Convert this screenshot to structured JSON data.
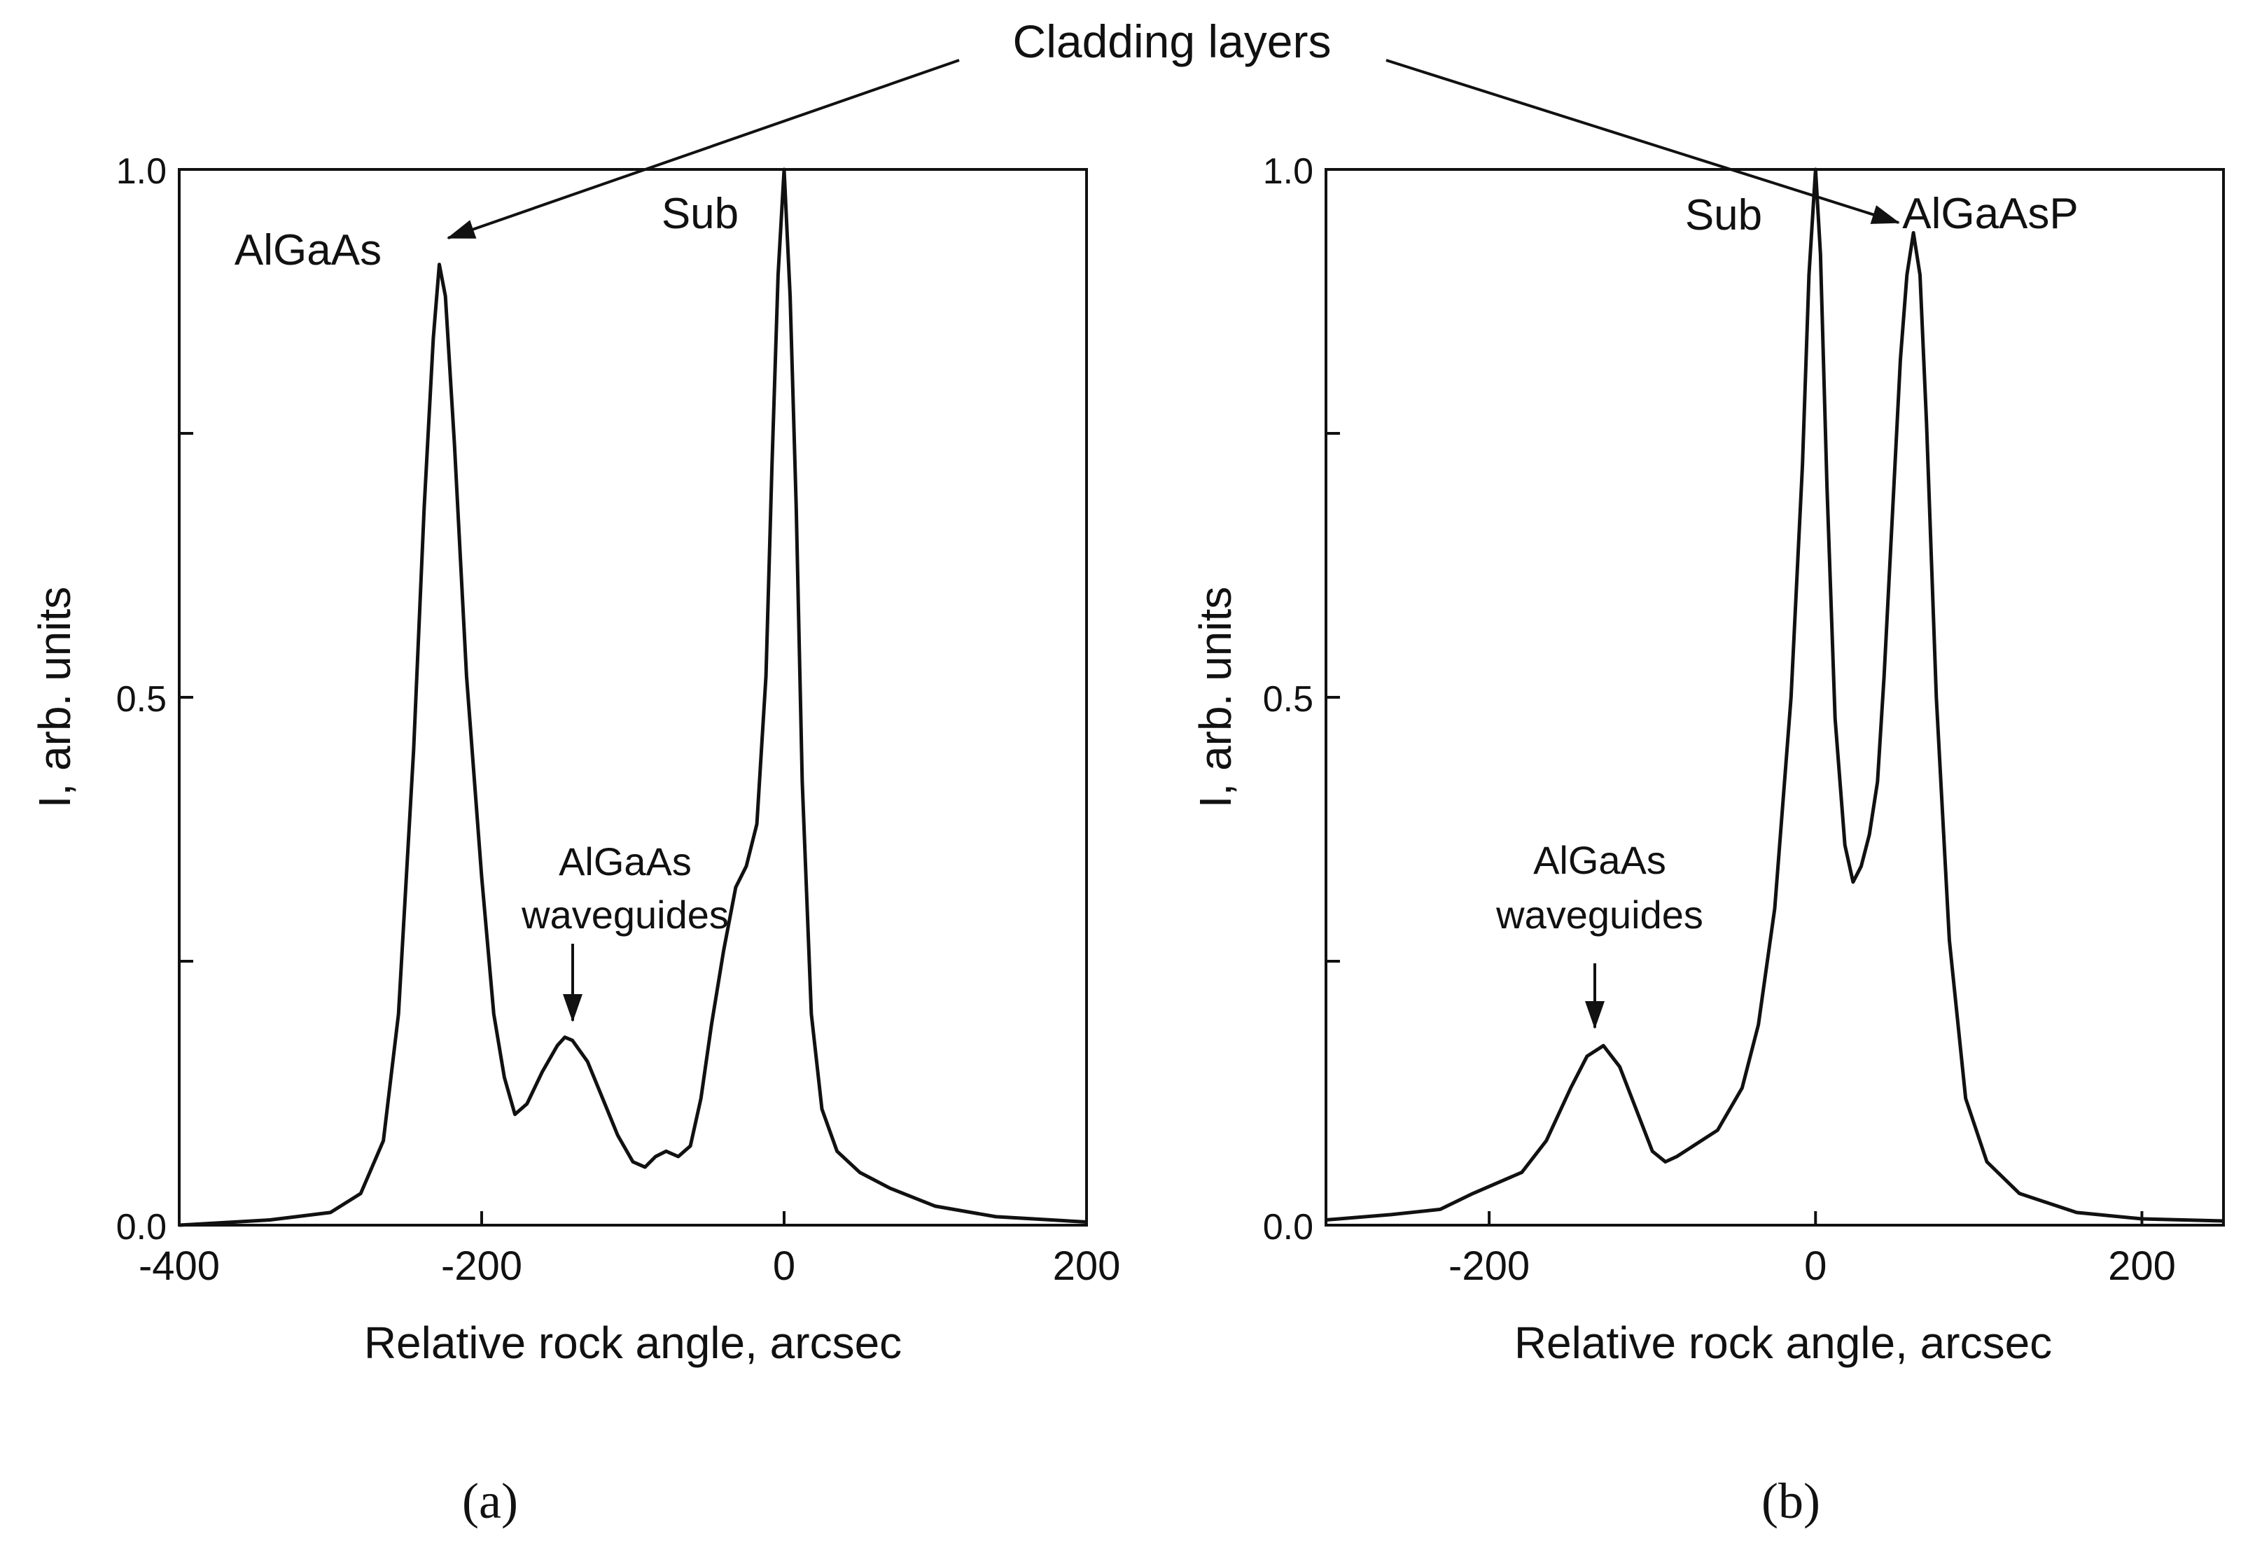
{
  "figure": {
    "top_annotation": "Cladding layers",
    "panel_a_label": "(a)",
    "panel_b_label": "(b)"
  },
  "chart_data": [
    {
      "type": "line",
      "panel": "a",
      "xlabel": "Relative rock angle, arcsec",
      "ylabel": "I, arb. units",
      "xlim": [
        -400,
        200
      ],
      "ylim": [
        0,
        1
      ],
      "xticks": [
        -400,
        -200,
        0,
        200
      ],
      "xtick_labels": [
        "-400",
        "-200",
        "0",
        "200"
      ],
      "yticks": [
        0,
        0.25,
        0.5,
        0.75,
        1.0
      ],
      "ytick_labels": [
        "0.0",
        "",
        "0.5",
        "",
        "1.0"
      ],
      "annotations": [
        {
          "text": "AlGaAs",
          "x": -225,
          "y": 0.92
        },
        {
          "text": "Sub",
          "x": 0,
          "y": 1.0
        },
        {
          "text": "AlGaAs",
          "line2": "waveguides",
          "x": -145,
          "y": 0.18
        }
      ],
      "series": [
        {
          "color": "#111111",
          "x": [
            -400,
            -340,
            -300,
            -280,
            -265,
            -255,
            -245,
            -238,
            -232,
            -228,
            -224,
            -218,
            -210,
            -200,
            -192,
            -185,
            -178,
            -170,
            -160,
            -150,
            -145,
            -140,
            -130,
            -120,
            -110,
            -100,
            -92,
            -85,
            -78,
            -70,
            -62,
            -55,
            -48,
            -40,
            -32,
            -25,
            -18,
            -12,
            -8,
            -4,
            0,
            4,
            8,
            12,
            18,
            25,
            35,
            50,
            70,
            100,
            140,
            200
          ],
          "y": [
            0.0,
            0.005,
            0.012,
            0.03,
            0.08,
            0.2,
            0.45,
            0.68,
            0.84,
            0.91,
            0.88,
            0.74,
            0.52,
            0.33,
            0.2,
            0.14,
            0.105,
            0.115,
            0.145,
            0.17,
            0.178,
            0.175,
            0.155,
            0.12,
            0.085,
            0.06,
            0.055,
            0.065,
            0.07,
            0.065,
            0.075,
            0.12,
            0.19,
            0.26,
            0.32,
            0.34,
            0.38,
            0.52,
            0.72,
            0.9,
            1.0,
            0.88,
            0.68,
            0.42,
            0.2,
            0.11,
            0.07,
            0.05,
            0.035,
            0.018,
            0.008,
            0.003
          ]
        }
      ]
    },
    {
      "type": "line",
      "panel": "b",
      "xlabel": "Relative rock angle, arcsec",
      "ylabel": "I, arb. units",
      "xlim": [
        -300,
        250
      ],
      "ylim": [
        0,
        1
      ],
      "xticks": [
        -200,
        0,
        200
      ],
      "xtick_labels": [
        "-200",
        "0",
        "200"
      ],
      "yticks": [
        0,
        0.25,
        0.5,
        0.75,
        1.0
      ],
      "ytick_labels": [
        "0.0",
        "",
        "0.5",
        "",
        "1.0"
      ],
      "annotations": [
        {
          "text": "Sub",
          "x": 0,
          "y": 1.0
        },
        {
          "text": "AlGaAsP",
          "x": 60,
          "y": 0.94
        },
        {
          "text": "AlGaAs",
          "line2": "waveguides",
          "x": -130,
          "y": 0.17
        }
      ],
      "series": [
        {
          "color": "#111111",
          "x": [
            -300,
            -260,
            -230,
            -210,
            -195,
            -180,
            -165,
            -150,
            -140,
            -130,
            -120,
            -110,
            -100,
            -92,
            -85,
            -75,
            -60,
            -45,
            -35,
            -25,
            -15,
            -8,
            -4,
            0,
            3,
            7,
            12,
            18,
            23,
            28,
            33,
            38,
            42,
            48,
            52,
            56,
            60,
            64,
            68,
            74,
            82,
            92,
            105,
            125,
            160,
            200,
            250
          ],
          "y": [
            0.005,
            0.01,
            0.015,
            0.03,
            0.04,
            0.05,
            0.08,
            0.13,
            0.16,
            0.17,
            0.15,
            0.11,
            0.07,
            0.06,
            0.065,
            0.075,
            0.09,
            0.13,
            0.19,
            0.3,
            0.5,
            0.72,
            0.9,
            1.0,
            0.92,
            0.7,
            0.48,
            0.36,
            0.325,
            0.34,
            0.37,
            0.42,
            0.52,
            0.7,
            0.82,
            0.9,
            0.94,
            0.9,
            0.76,
            0.5,
            0.27,
            0.12,
            0.06,
            0.03,
            0.012,
            0.006,
            0.004
          ]
        }
      ]
    }
  ]
}
